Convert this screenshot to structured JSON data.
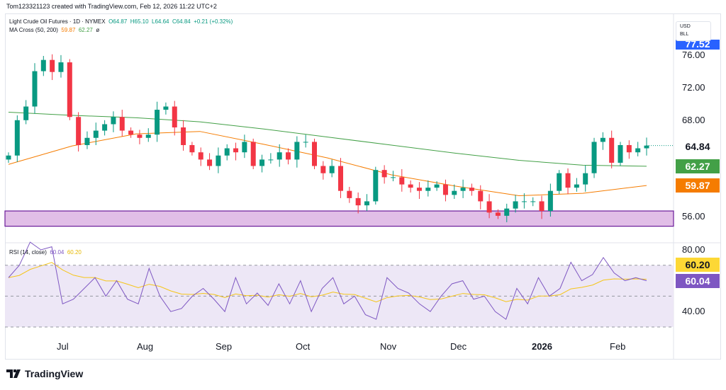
{
  "credit": "Tom123321123 created with TradingView.com, Feb 12, 2026 11:22 UTC+2",
  "symbol": {
    "name": "Light Crude Oil Futures · 1D · NYMEX",
    "o": "O64.87",
    "h": "H65.10",
    "l": "L64.64",
    "c": "C64.84",
    "chg": "+0.21 (+0.32%)"
  },
  "ma": {
    "label": "MA Cross (50, 200)",
    "v50": "59.87",
    "v200": "62.27",
    "extra": "ø"
  },
  "rsi": {
    "label": "RSI (14, close)",
    "value": "60.04",
    "signal": "60.20"
  },
  "currency": {
    "unit": "USD",
    "sub": "BLL"
  },
  "price_axis": [
    "76.00",
    "72.00",
    "68.00",
    "56.00"
  ],
  "rsi_axis": [
    "80.00",
    "40.00"
  ],
  "tags": {
    "high": "77.52",
    "last": "64.84",
    "ma200": "62.27",
    "ma50": "59.87",
    "rsi_signal": "60.20",
    "rsi_value": "60.04"
  },
  "time_axis": [
    "Jul",
    "Aug",
    "Sep",
    "Oct",
    "Nov",
    "Dec",
    "2026",
    "Feb"
  ],
  "brand": "TradingView",
  "colors": {
    "up": "#089981",
    "down": "#f23645",
    "ma50": "#f57c00",
    "ma200": "#43a047",
    "rsi": "#7e57c2",
    "rsi_signal": "#f5c518",
    "zone": "#e1bee7",
    "zone_border": "#6a1b9a",
    "high_tag": "#2962ff"
  },
  "chart_data": {
    "type": "candlestick",
    "closes": [
      63.6,
      68.0,
      69.7,
      74.1,
      75.5,
      74.0,
      75.2,
      68.4,
      64.9,
      65.8,
      66.7,
      67.5,
      68.4,
      66.7,
      66.2,
      65.8,
      66.2,
      69.3,
      69.7,
      67.1,
      64.9,
      64.0,
      63.1,
      62.3,
      63.6,
      64.5,
      64.0,
      65.3,
      62.3,
      63.1,
      63.1,
      64.0,
      63.1,
      65.3,
      65.3,
      62.3,
      61.4,
      62.3,
      59.2,
      58.3,
      57.4,
      57.9,
      61.8,
      60.9,
      60.9,
      60.0,
      59.6,
      59.2,
      59.6,
      60.0,
      58.7,
      59.2,
      59.6,
      59.2,
      57.9,
      56.5,
      56.1,
      57.0,
      57.9,
      57.9,
      57.9,
      56.7,
      59.2,
      61.4,
      59.6,
      60.0,
      61.4,
      65.3,
      65.8,
      62.7,
      64.9,
      64.0,
      64.5,
      64.84
    ],
    "ma200": [
      69.0,
      68.6,
      68.3,
      67.8,
      66.9,
      65.9,
      64.9,
      63.9,
      63.0,
      62.4,
      62.27
    ],
    "ma50": [
      62.5,
      64.8,
      66.3,
      66.6,
      65.0,
      63.3,
      61.2,
      59.8,
      58.6,
      58.9,
      59.87
    ],
    "support_zone": [
      54.8,
      56.7
    ],
    "rsi": [
      62,
      70,
      85,
      80,
      82,
      45,
      48,
      55,
      62,
      50,
      60,
      48,
      45,
      68,
      50,
      40,
      42,
      50,
      55,
      48,
      40,
      62,
      45,
      52,
      44,
      58,
      45,
      60,
      40,
      55,
      62,
      45,
      50,
      38,
      35,
      62,
      55,
      52,
      45,
      40,
      50,
      58,
      60,
      48,
      50,
      40,
      35,
      55,
      45,
      62,
      50,
      55,
      72,
      60,
      64,
      75,
      65,
      60,
      62,
      60
    ],
    "rsi_levels": [
      70,
      50,
      30
    ],
    "ylim": [
      53.5,
      79
    ],
    "rsi_ylim": [
      20,
      90
    ]
  }
}
